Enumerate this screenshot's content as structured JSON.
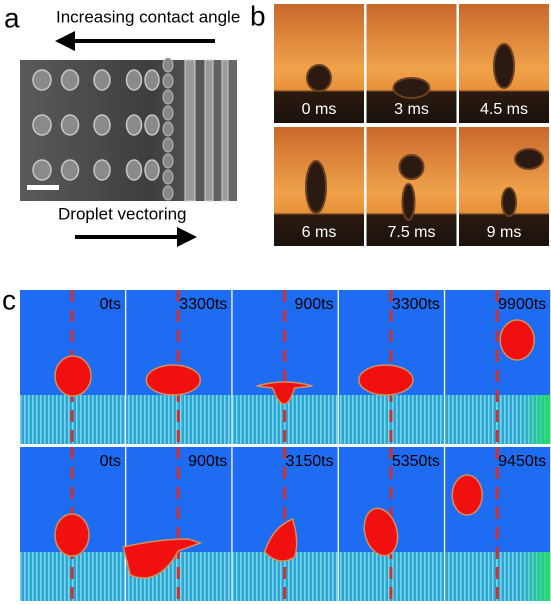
{
  "panels": {
    "a": {
      "label": "a",
      "top_text": "Increasing contact angle",
      "bottom_text": "Droplet vectoring"
    },
    "b": {
      "label": "b",
      "frames": [
        "0 ms",
        "3 ms",
        "4.5 ms",
        "6 ms",
        "7.5 ms",
        "9 ms"
      ]
    },
    "c": {
      "label": "c",
      "rows": [
        [
          "0ts",
          "3300ts",
          "900ts",
          "3300ts",
          "9900ts"
        ],
        [
          "0ts",
          "900ts",
          "3150ts",
          "5350ts",
          "9450ts"
        ]
      ]
    }
  }
}
